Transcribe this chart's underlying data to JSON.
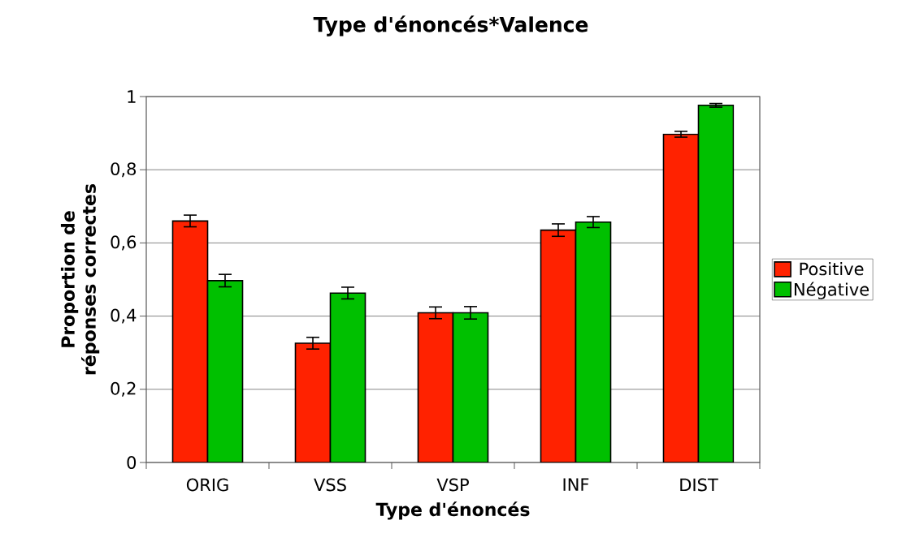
{
  "chart_data": {
    "type": "bar",
    "title": "Type d'énoncés*Valence",
    "xlabel": "Type d'énoncés",
    "ylabel": "Proportion de réponses correctes",
    "categories": [
      "ORIG",
      "VSS",
      "VSP",
      "INF",
      "DIST"
    ],
    "series": [
      {
        "name": "Positive",
        "color": "#ff2200",
        "values": [
          0.66,
          0.326,
          0.409,
          0.635,
          0.897
        ],
        "errors": [
          0.016,
          0.016,
          0.016,
          0.017,
          0.008
        ]
      },
      {
        "name": "Négative",
        "color": "#00c000",
        "values": [
          0.497,
          0.463,
          0.409,
          0.657,
          0.976
        ],
        "errors": [
          0.017,
          0.016,
          0.017,
          0.015,
          0.005
        ]
      }
    ],
    "ylim": [
      0,
      1
    ],
    "yticks": [
      0,
      {
        "value": 0.2,
        "label": "0,2"
      },
      {
        "value": 0.4,
        "label": "0,4"
      },
      {
        "value": 0.6,
        "label": "0,6"
      },
      {
        "value": 0.8,
        "label": "0,8"
      },
      1
    ],
    "grid": "y",
    "legend": "right"
  }
}
